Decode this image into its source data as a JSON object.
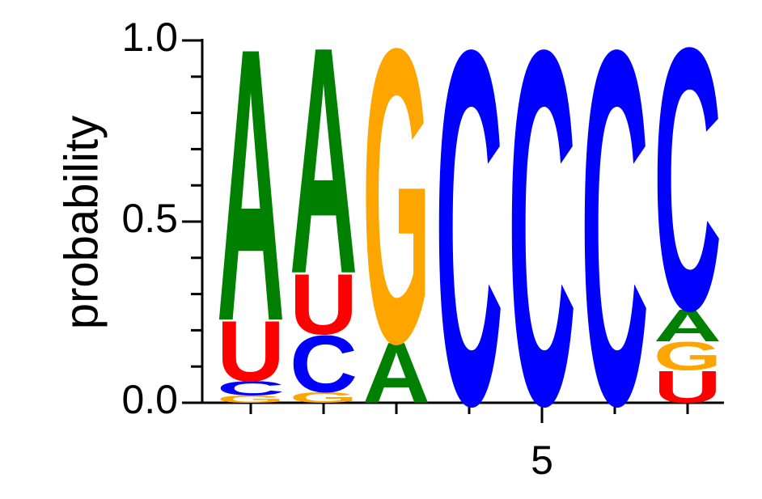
{
  "chart_data": {
    "type": "sequence_logo",
    "ylabel": "probability",
    "ylim": [
      0,
      1
    ],
    "yticks": [
      {
        "value": 0,
        "label": "0.0"
      },
      {
        "value": 0.5,
        "label": "0.5"
      },
      {
        "value": 1,
        "label": "1.0"
      }
    ],
    "yminor_ticks": [
      0.1,
      0.2,
      0.3,
      0.4,
      0.6,
      0.7,
      0.8,
      0.9
    ],
    "xlim": [
      0.5,
      7.5
    ],
    "xticks": [
      5
    ],
    "xminor_ticks": [
      1,
      2,
      3,
      4,
      6,
      7
    ],
    "colors": {
      "A": "#008000",
      "C": "#0000ff",
      "G": "#ffa500",
      "U": "#ff0000"
    },
    "positions": [
      {
        "x": 1,
        "letters": [
          {
            "letter": "G",
            "value": 0.02
          },
          {
            "letter": "C",
            "value": 0.04
          },
          {
            "letter": "U",
            "value": 0.17
          },
          {
            "letter": "A",
            "value": 0.77
          }
        ]
      },
      {
        "x": 2,
        "letters": [
          {
            "letter": "G",
            "value": 0.03
          },
          {
            "letter": "C",
            "value": 0.16
          },
          {
            "letter": "U",
            "value": 0.17
          },
          {
            "letter": "A",
            "value": 0.64
          }
        ]
      },
      {
        "x": 3,
        "letters": [
          {
            "letter": "A",
            "value": 0.17
          },
          {
            "letter": "G",
            "value": 0.83
          }
        ]
      },
      {
        "x": 4,
        "letters": [
          {
            "letter": "C",
            "value": 1
          }
        ]
      },
      {
        "x": 5,
        "letters": [
          {
            "letter": "C",
            "value": 1
          }
        ]
      },
      {
        "x": 6,
        "letters": [
          {
            "letter": "C",
            "value": 1
          }
        ]
      },
      {
        "x": 7,
        "letters": [
          {
            "letter": "U",
            "value": 0.09
          },
          {
            "letter": "G",
            "value": 0.08
          },
          {
            "letter": "A",
            "value": 0.09
          },
          {
            "letter": "C",
            "value": 0.74
          }
        ]
      }
    ]
  }
}
